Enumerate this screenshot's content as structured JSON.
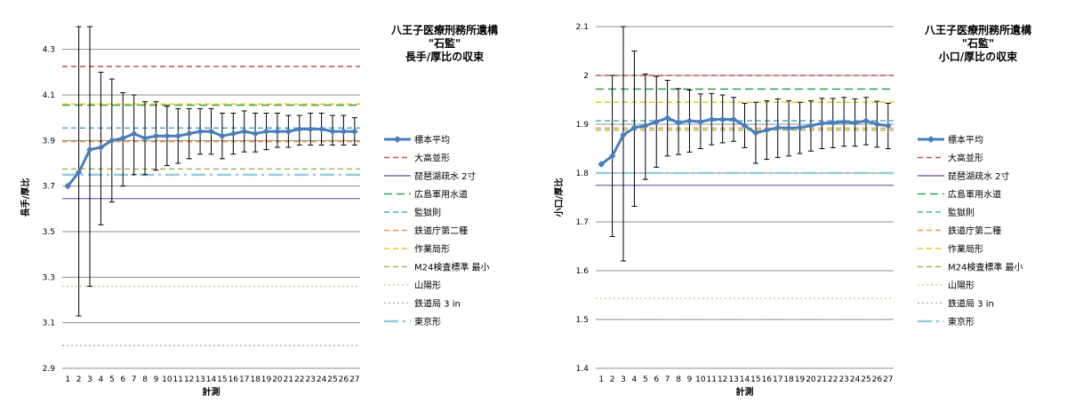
{
  "chart_data": [
    {
      "type": "line",
      "title_lines": [
        "八王子医療刑務所遺構",
        "\"石監\"",
        "長手/厚比の収束"
      ],
      "xlabel": "計測",
      "ylabel": "長手/厚比",
      "ylim": [
        2.9,
        4.4
      ],
      "yticks": [
        "2.9",
        "3.1",
        "3.3",
        "3.5",
        "3.7",
        "3.9",
        "4.1",
        "4.3"
      ],
      "grid": true,
      "legend_position": "right",
      "categories": [
        "1",
        "2",
        "3",
        "4",
        "5",
        "6",
        "7",
        "8",
        "9",
        "10",
        "11",
        "12",
        "13",
        "14",
        "15",
        "16",
        "17",
        "18",
        "19",
        "20",
        "21",
        "22",
        "23",
        "24",
        "25",
        "26",
        "27"
      ],
      "sample_mean": {
        "name": "標本平均",
        "color": "#4a7ebb",
        "values": [
          3.7,
          3.76,
          3.86,
          3.87,
          3.9,
          3.91,
          3.93,
          3.91,
          3.92,
          3.92,
          3.92,
          3.93,
          3.94,
          3.94,
          3.92,
          3.93,
          3.94,
          3.93,
          3.94,
          3.94,
          3.94,
          3.95,
          3.95,
          3.95,
          3.94,
          3.94,
          3.94
        ],
        "error_low": [
          3.7,
          3.13,
          3.26,
          3.53,
          3.63,
          3.7,
          3.75,
          3.75,
          3.77,
          3.79,
          3.8,
          3.82,
          3.84,
          3.84,
          3.82,
          3.84,
          3.85,
          3.85,
          3.86,
          3.87,
          3.87,
          3.88,
          3.88,
          3.88,
          3.88,
          3.88,
          3.88
        ],
        "error_high": [
          3.7,
          4.4,
          4.4,
          4.2,
          4.17,
          4.11,
          4.1,
          4.07,
          4.07,
          4.05,
          4.04,
          4.04,
          4.04,
          4.04,
          4.02,
          4.02,
          4.03,
          4.02,
          4.02,
          4.02,
          4.01,
          4.01,
          4.02,
          4.02,
          4.01,
          4.01,
          4.0
        ]
      },
      "reference_lines": [
        {
          "name": "大高並形",
          "value": 4.225,
          "color": "#c0504d",
          "style": "dash"
        },
        {
          "name": "琵琶湖疏水 2寸",
          "value": 3.645,
          "color": "#8064a2",
          "style": "solid"
        },
        {
          "name": "広島軍用水道",
          "value": 4.055,
          "color": "#2ca44e",
          "style": "longdash"
        },
        {
          "name": "監獄則",
          "value": 3.955,
          "color": "#4bacc6",
          "style": "dash"
        },
        {
          "name": "鉄道庁第二種",
          "value": 3.895,
          "color": "#f79646",
          "style": "dash"
        },
        {
          "name": "作業局形",
          "value": 4.06,
          "color": "#f2c314",
          "style": "dash"
        },
        {
          "name": "M24検査標準 最小",
          "value": 3.775,
          "color": "#9bbb59",
          "style": "dash"
        },
        {
          "name": "山陽形",
          "value": 3.26,
          "color": "#c4d79b",
          "style": "dot"
        },
        {
          "name": "鉄道局 3 in",
          "value": 3.0,
          "color": "#b3a2c7",
          "style": "dot"
        },
        {
          "name": "東京形",
          "value": 3.75,
          "color": "#93cddd",
          "style": "dashdot"
        }
      ]
    },
    {
      "type": "line",
      "title_lines": [
        "八王子医療刑務所遺構",
        "\"石監\"",
        "小口/厚比の収束"
      ],
      "xlabel": "計測",
      "ylabel": "小口/厚比",
      "ylim": [
        1.4,
        2.1
      ],
      "yticks": [
        "1.4",
        "1.5",
        "1.6",
        "1.7",
        "1.8",
        "1.9",
        "2",
        "2.1"
      ],
      "grid": true,
      "legend_position": "right",
      "categories": [
        "1",
        "2",
        "3",
        "4",
        "5",
        "6",
        "7",
        "8",
        "9",
        "10",
        "11",
        "12",
        "13",
        "14",
        "15",
        "16",
        "17",
        "18",
        "19",
        "20",
        "21",
        "22",
        "23",
        "24",
        "25",
        "26",
        "27"
      ],
      "sample_mean": {
        "name": "標本平均",
        "color": "#4a7ebb",
        "values": [
          1.818,
          1.835,
          1.878,
          1.893,
          1.897,
          1.905,
          1.913,
          1.903,
          1.907,
          1.905,
          1.91,
          1.91,
          1.91,
          1.897,
          1.882,
          1.888,
          1.893,
          1.892,
          1.893,
          1.897,
          1.902,
          1.903,
          1.905,
          1.903,
          1.907,
          1.9,
          1.897
        ],
        "error_low": [
          1.818,
          1.67,
          1.62,
          1.732,
          1.787,
          1.812,
          1.835,
          1.838,
          1.843,
          1.85,
          1.858,
          1.862,
          1.865,
          1.852,
          1.82,
          1.828,
          1.832,
          1.835,
          1.84,
          1.845,
          1.85,
          1.852,
          1.855,
          1.855,
          1.858,
          1.853,
          1.85
        ],
        "error_high": [
          1.818,
          2.0,
          2.1,
          2.05,
          2.003,
          1.998,
          1.99,
          1.973,
          1.97,
          1.962,
          1.963,
          1.96,
          1.955,
          1.943,
          1.945,
          1.948,
          1.952,
          1.948,
          1.945,
          1.948,
          1.953,
          1.953,
          1.955,
          1.952,
          1.955,
          1.947,
          1.943
        ]
      },
      "reference_lines": [
        {
          "name": "大高並形",
          "value": 2.0,
          "color": "#c0504d",
          "style": "dash"
        },
        {
          "name": "琵琶湖疏水 2寸",
          "value": 1.775,
          "color": "#8064a2",
          "style": "solid"
        },
        {
          "name": "広島軍用水道",
          "value": 1.972,
          "color": "#2ca44e",
          "style": "longdash"
        },
        {
          "name": "監獄則",
          "value": 1.907,
          "color": "#4bacc6",
          "style": "dash"
        },
        {
          "name": "鉄道庁第二種",
          "value": 1.892,
          "color": "#f79646",
          "style": "dash"
        },
        {
          "name": "作業局形",
          "value": 1.945,
          "color": "#f2c314",
          "style": "dash"
        },
        {
          "name": "M24検査標準 最小",
          "value": 1.888,
          "color": "#9bbb59",
          "style": "dash"
        },
        {
          "name": "山陽形",
          "value": 1.543,
          "color": "#c4d79b",
          "style": "dot"
        },
        {
          "name": "鉄道局 3 in",
          "value": 1.5,
          "color": "#b3a2c7",
          "style": "dot"
        },
        {
          "name": "東京形",
          "value": 1.8,
          "color": "#93cddd",
          "style": "dashdot"
        }
      ]
    }
  ]
}
